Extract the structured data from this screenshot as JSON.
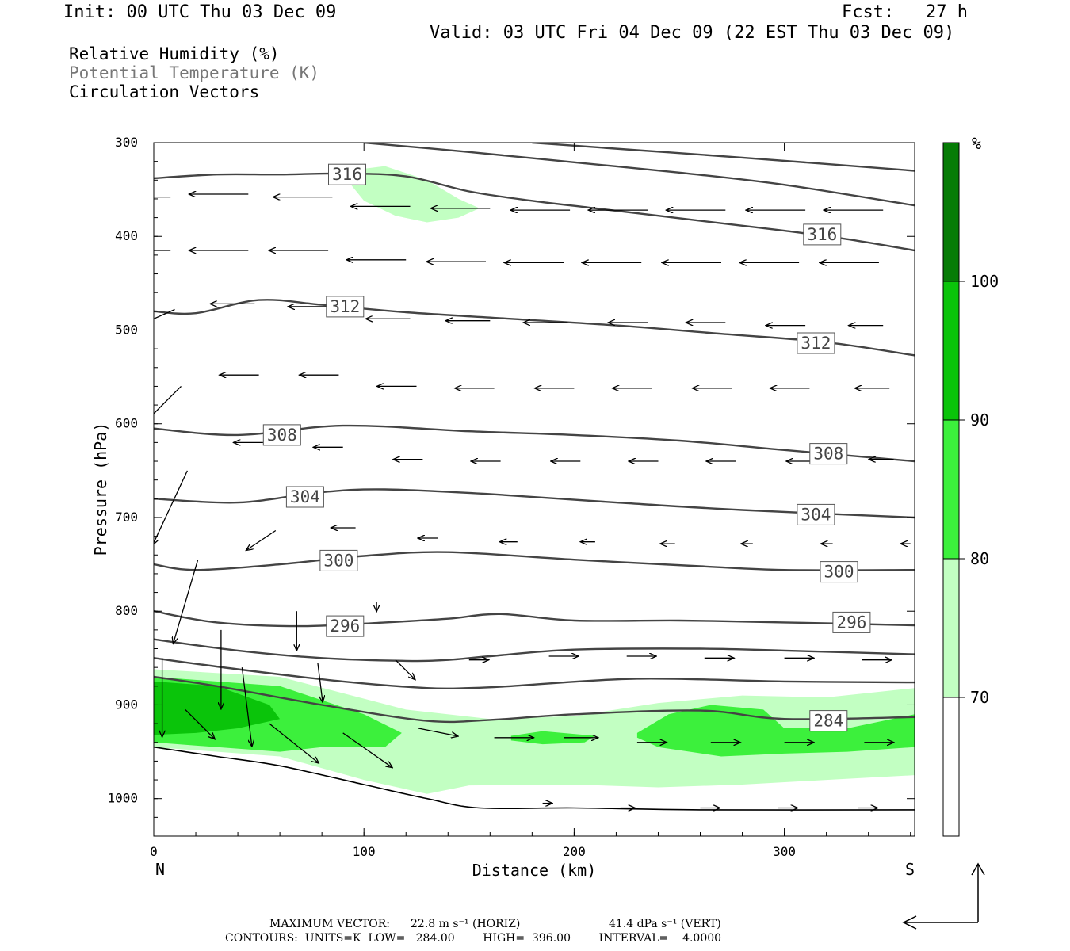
{
  "header": {
    "init": "Init: 00 UTC Thu 03 Dec 09",
    "fcst": "Fcst:   27 h",
    "valid": "Valid: 03 UTC Fri 04 Dec 09 (22 EST Thu 03 Dec 09)"
  },
  "legend": {
    "rh": "Relative Humidity (%)",
    "theta": "Potential Temperature (K)",
    "vectors": "Circulation Vectors"
  },
  "footer": {
    "max_vector_label": "MAXIMUM VECTOR:",
    "max_vector_horiz": "22.8 m s⁻¹ (HORIZ)",
    "max_vector_vert": "41.4 dPa s⁻¹ (VERT)",
    "contours": "CONTOURS:  UNITS=K  LOW=   284.00        HIGH=  396.00        INTERVAL=    4.0000"
  },
  "colorbar": {
    "unit": "%",
    "levels": [
      "70",
      "80",
      "90",
      "100"
    ],
    "colors": [
      "#ffffff",
      "#c2ffc2",
      "#3cf03c",
      "#0ac40a",
      "#067c06"
    ]
  },
  "chart_data": {
    "type": "contour",
    "xlabel": "Distance (km)",
    "ylabel": "Pressure (hPa)",
    "x_ticks": [
      "0",
      "100",
      "200",
      "300"
    ],
    "y_ticks": [
      "300",
      "400",
      "500",
      "600",
      "700",
      "800",
      "900",
      "1000"
    ],
    "xlim": [
      0,
      362
    ],
    "ylim": [
      1040,
      300
    ],
    "x_end_labels": {
      "left": "N",
      "right": "S"
    },
    "theta_contour_labels": [
      "316",
      "312",
      "308",
      "304",
      "300",
      "296",
      "284"
    ],
    "theta_contours": [
      {
        "K": 316,
        "x": [
          0,
          30,
          60,
          90,
          120,
          150,
          180,
          210,
          240,
          270,
          300,
          330,
          362
        ],
        "p": [
          338,
          334,
          334,
          333,
          336,
          352,
          362,
          370,
          378,
          386,
          394,
          403,
          415
        ]
      },
      {
        "K": 320,
        "x": [
          100,
          150,
          200,
          250,
          300,
          362
        ],
        "p": [
          300,
          310,
          321,
          332,
          345,
          367
        ]
      },
      {
        "K": 324,
        "x": [
          180,
          230,
          280,
          362
        ],
        "p": [
          300,
          308,
          316,
          330
        ]
      },
      {
        "K": 312,
        "x": [
          0,
          20,
          50,
          80,
          120,
          170,
          220,
          270,
          320,
          362
        ],
        "p": [
          480,
          482,
          468,
          473,
          481,
          488,
          495,
          504,
          513,
          527
        ]
      },
      {
        "K": 308,
        "x": [
          0,
          40,
          90,
          150,
          200,
          250,
          300,
          362
        ],
        "p": [
          605,
          612,
          602,
          608,
          612,
          618,
          628,
          640
        ]
      },
      {
        "K": 304,
        "x": [
          0,
          40,
          80,
          110,
          160,
          220,
          280,
          362
        ],
        "p": [
          680,
          684,
          673,
          670,
          675,
          684,
          692,
          700
        ]
      },
      {
        "K": 300,
        "x": [
          0,
          20,
          60,
          100,
          140,
          200,
          260,
          300,
          362
        ],
        "p": [
          750,
          756,
          750,
          741,
          737,
          745,
          752,
          756,
          756
        ]
      },
      {
        "K": 296,
        "x": [
          0,
          30,
          70,
          110,
          140,
          165,
          200,
          250,
          300,
          362
        ],
        "p": [
          800,
          812,
          816,
          812,
          808,
          803,
          810,
          810,
          812,
          815
        ]
      },
      {
        "K": 292,
        "x": [
          0,
          40,
          80,
          120,
          140,
          160,
          200,
          260,
          300,
          362
        ],
        "p": [
          830,
          842,
          850,
          853,
          852,
          848,
          841,
          840,
          842,
          846
        ]
      },
      {
        "K": 288,
        "x": [
          0,
          40,
          90,
          130,
          150,
          170,
          230,
          300,
          362
        ],
        "p": [
          850,
          862,
          875,
          882,
          882,
          880,
          872,
          875,
          876
        ]
      },
      {
        "K": 284,
        "x": [
          0,
          30,
          80,
          130,
          160,
          200,
          260,
          300,
          362
        ],
        "p": [
          870,
          880,
          900,
          917,
          916,
          910,
          906,
          915,
          913
        ]
      },
      {
        "K": 280,
        "x": [
          0,
          30,
          60,
          100,
          130,
          155,
          200,
          260,
          362
        ],
        "p": [
          945,
          955,
          965,
          985,
          1000,
          1010,
          1010,
          1012,
          1012
        ]
      }
    ],
    "rh_levels": [
      70,
      80,
      90,
      100
    ],
    "rh_regions": [
      {
        "level": 80,
        "x": [
          92,
          110,
          130,
          145,
          155,
          145,
          130,
          115,
          100,
          92
        ],
        "p": [
          330,
          325,
          340,
          360,
          370,
          380,
          385,
          378,
          362,
          340
        ]
      },
      {
        "level": 80,
        "x": [
          0,
          60,
          120,
          160,
          200,
          240,
          280,
          320,
          362,
          362,
          320,
          280,
          240,
          200,
          150,
          130,
          100,
          60,
          0
        ],
        "p": [
          862,
          870,
          905,
          915,
          912,
          898,
          890,
          892,
          882,
          975,
          980,
          985,
          988,
          985,
          986,
          995,
          980,
          955,
          945
        ]
      },
      {
        "level": 90,
        "x": [
          0,
          60,
          100,
          118,
          110,
          80,
          60,
          0
        ],
        "p": [
          870,
          880,
          910,
          930,
          945,
          945,
          950,
          940
        ]
      },
      {
        "level": 90,
        "x": [
          170,
          185,
          210,
          205,
          185,
          170
        ],
        "p": [
          933,
          928,
          933,
          940,
          942,
          938
        ]
      },
      {
        "level": 90,
        "x": [
          230,
          245,
          265,
          290,
          300,
          330,
          362,
          362,
          330,
          300,
          270,
          240,
          230
        ],
        "p": [
          930,
          910,
          900,
          905,
          925,
          925,
          910,
          945,
          950,
          952,
          955,
          945,
          935
        ]
      },
      {
        "level": 100,
        "x": [
          0,
          30,
          55,
          60,
          40,
          20,
          0
        ],
        "p": [
          875,
          880,
          900,
          915,
          925,
          930,
          932
        ]
      }
    ],
    "vectors_u_v": [
      {
        "x": 8,
        "p": 358,
        "u": -60,
        "v": 0
      },
      {
        "x": 45,
        "p": 355,
        "u": -60,
        "v": 0
      },
      {
        "x": 85,
        "p": 358,
        "u": -60,
        "v": 0
      },
      {
        "x": 122,
        "p": 368,
        "u": -60,
        "v": 0
      },
      {
        "x": 160,
        "p": 370,
        "u": -60,
        "v": 0
      },
      {
        "x": 198,
        "p": 372,
        "u": -60,
        "v": 0
      },
      {
        "x": 235,
        "p": 372,
        "u": -60,
        "v": 0
      },
      {
        "x": 272,
        "p": 372,
        "u": -60,
        "v": 0
      },
      {
        "x": 310,
        "p": 372,
        "u": -60,
        "v": 0
      },
      {
        "x": 347,
        "p": 372,
        "u": -60,
        "v": 0
      },
      {
        "x": 8,
        "p": 415,
        "u": -60,
        "v": 0
      },
      {
        "x": 45,
        "p": 415,
        "u": -60,
        "v": 0
      },
      {
        "x": 83,
        "p": 415,
        "u": -60,
        "v": 0
      },
      {
        "x": 120,
        "p": 425,
        "u": -60,
        "v": 0
      },
      {
        "x": 158,
        "p": 427,
        "u": -60,
        "v": 0
      },
      {
        "x": 195,
        "p": 428,
        "u": -60,
        "v": 0
      },
      {
        "x": 232,
        "p": 428,
        "u": -60,
        "v": 0
      },
      {
        "x": 270,
        "p": 428,
        "u": -60,
        "v": 0
      },
      {
        "x": 307,
        "p": 428,
        "u": -60,
        "v": 0
      },
      {
        "x": 345,
        "p": 428,
        "u": -60,
        "v": 0
      },
      {
        "x": 10,
        "p": 478,
        "u": -45,
        "v": 20
      },
      {
        "x": 48,
        "p": 472,
        "u": -45,
        "v": 0
      },
      {
        "x": 85,
        "p": 475,
        "u": -45,
        "v": 0
      },
      {
        "x": 122,
        "p": 488,
        "u": -45,
        "v": 0
      },
      {
        "x": 160,
        "p": 490,
        "u": -45,
        "v": 0
      },
      {
        "x": 197,
        "p": 492,
        "u": -45,
        "v": 0
      },
      {
        "x": 235,
        "p": 492,
        "u": -40,
        "v": 0
      },
      {
        "x": 272,
        "p": 492,
        "u": -40,
        "v": 0
      },
      {
        "x": 310,
        "p": 495,
        "u": -40,
        "v": 0
      },
      {
        "x": 347,
        "p": 495,
        "u": -35,
        "v": 0
      },
      {
        "x": 13,
        "p": 560,
        "u": -45,
        "v": 45
      },
      {
        "x": 50,
        "p": 548,
        "u": -40,
        "v": 0
      },
      {
        "x": 88,
        "p": 548,
        "u": -40,
        "v": 0
      },
      {
        "x": 125,
        "p": 560,
        "u": -40,
        "v": 0
      },
      {
        "x": 162,
        "p": 562,
        "u": -40,
        "v": 0
      },
      {
        "x": 200,
        "p": 562,
        "u": -40,
        "v": 0
      },
      {
        "x": 237,
        "p": 562,
        "u": -40,
        "v": 0
      },
      {
        "x": 275,
        "p": 562,
        "u": -40,
        "v": 0
      },
      {
        "x": 312,
        "p": 562,
        "u": -40,
        "v": 0
      },
      {
        "x": 350,
        "p": 562,
        "u": -35,
        "v": 0
      },
      {
        "x": 16,
        "p": 650,
        "u": -35,
        "v": 75
      },
      {
        "x": 52,
        "p": 620,
        "u": -30,
        "v": 0
      },
      {
        "x": 90,
        "p": 625,
        "u": -30,
        "v": 0
      },
      {
        "x": 128,
        "p": 638,
        "u": -30,
        "v": 0
      },
      {
        "x": 165,
        "p": 640,
        "u": -30,
        "v": 0
      },
      {
        "x": 203,
        "p": 640,
        "u": -30,
        "v": 0
      },
      {
        "x": 240,
        "p": 640,
        "u": -30,
        "v": 0
      },
      {
        "x": 277,
        "p": 640,
        "u": -30,
        "v": 0
      },
      {
        "x": 315,
        "p": 640,
        "u": -30,
        "v": 0
      },
      {
        "x": 352,
        "p": 638,
        "u": -25,
        "v": 0
      },
      {
        "x": 21,
        "p": 745,
        "u": -25,
        "v": 85
      },
      {
        "x": 58,
        "p": 714,
        "u": -30,
        "v": 20
      },
      {
        "x": 96,
        "p": 711,
        "u": -25,
        "v": 0
      },
      {
        "x": 135,
        "p": 722,
        "u": -20,
        "v": 0
      },
      {
        "x": 173,
        "p": 726,
        "u": -18,
        "v": 0
      },
      {
        "x": 210,
        "p": 726,
        "u": -15,
        "v": 0
      },
      {
        "x": 248,
        "p": 728,
        "u": -15,
        "v": 0
      },
      {
        "x": 285,
        "p": 728,
        "u": -12,
        "v": 0
      },
      {
        "x": 323,
        "p": 728,
        "u": -12,
        "v": 0
      },
      {
        "x": 360,
        "p": 728,
        "u": -10,
        "v": 0
      },
      {
        "x": 32,
        "p": 820,
        "u": 0,
        "v": 80
      },
      {
        "x": 68,
        "p": 800,
        "u": 0,
        "v": 40
      },
      {
        "x": 106,
        "p": 790,
        "u": 0,
        "v": 10
      },
      {
        "x": 4,
        "p": 850,
        "u": 0,
        "v": 80
      },
      {
        "x": 42,
        "p": 860,
        "u": 10,
        "v": 80
      },
      {
        "x": 78,
        "p": 855,
        "u": 5,
        "v": 40
      },
      {
        "x": 115,
        "p": 852,
        "u": 20,
        "v": 20
      },
      {
        "x": 150,
        "p": 852,
        "u": 20,
        "v": 0
      },
      {
        "x": 188,
        "p": 848,
        "u": 30,
        "v": 0
      },
      {
        "x": 225,
        "p": 848,
        "u": 30,
        "v": 0
      },
      {
        "x": 262,
        "p": 850,
        "u": 30,
        "v": 0
      },
      {
        "x": 300,
        "p": 850,
        "u": 30,
        "v": 0
      },
      {
        "x": 337,
        "p": 852,
        "u": 30,
        "v": 0
      },
      {
        "x": 15,
        "p": 905,
        "u": 30,
        "v": 30
      },
      {
        "x": 55,
        "p": 920,
        "u": 50,
        "v": 40
      },
      {
        "x": 90,
        "p": 930,
        "u": 50,
        "v": 35
      },
      {
        "x": 126,
        "p": 925,
        "u": 40,
        "v": 8
      },
      {
        "x": 162,
        "p": 935,
        "u": 40,
        "v": 0
      },
      {
        "x": 195,
        "p": 935,
        "u": 35,
        "v": 0
      },
      {
        "x": 230,
        "p": 940,
        "u": 30,
        "v": 0
      },
      {
        "x": 265,
        "p": 940,
        "u": 30,
        "v": 0
      },
      {
        "x": 300,
        "p": 940,
        "u": 30,
        "v": 0
      },
      {
        "x": 338,
        "p": 940,
        "u": 30,
        "v": 0
      },
      {
        "x": 185,
        "p": 1005,
        "u": 10,
        "v": 0
      },
      {
        "x": 222,
        "p": 1010,
        "u": 15,
        "v": 0
      },
      {
        "x": 260,
        "p": 1010,
        "u": 20,
        "v": 0
      },
      {
        "x": 297,
        "p": 1010,
        "u": 20,
        "v": 0
      },
      {
        "x": 335,
        "p": 1010,
        "u": 20,
        "v": 0
      }
    ]
  }
}
